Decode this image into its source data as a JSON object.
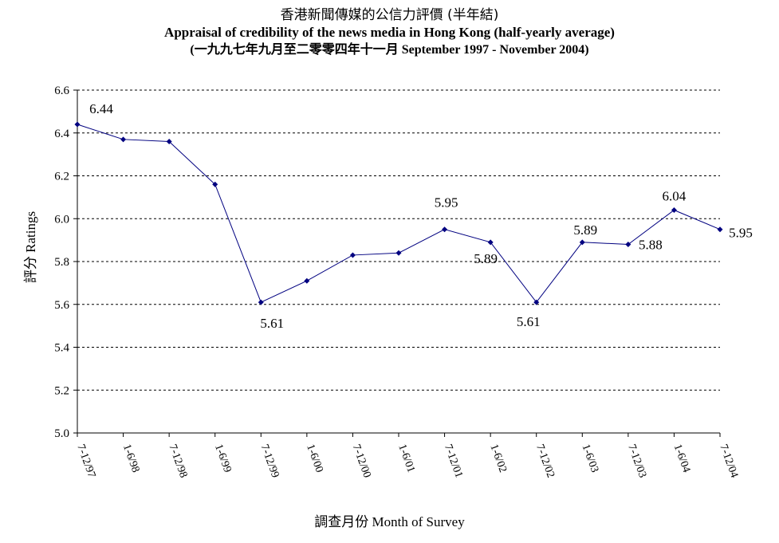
{
  "chart_data": {
    "type": "line",
    "title": "香港新聞傳媒的公信力評價 (半年結)",
    "subtitle": "Appraisal of credibility of the news media in Hong Kong (half-yearly average)",
    "subtitle2": "(一九九七年九月至二零零四年十一月 September 1997 - November 2004)",
    "xlabel": "調查月份 Month of Survey",
    "ylabel": "評分 Ratings",
    "ylim": [
      5.0,
      6.6
    ],
    "yticks": [
      "5.0",
      "5.2",
      "5.4",
      "5.6",
      "5.8",
      "6.0",
      "6.2",
      "6.4",
      "6.6"
    ],
    "grid": "horizontal dashed",
    "legend": "none",
    "line_color": "#000080",
    "categories": [
      "7-12/97",
      "1-6/98",
      "7-12/98",
      "1-6/99",
      "7-12/99",
      "1-6/00",
      "7-12/00",
      "1-6/01",
      "7-12/01",
      "1-6/02",
      "7-12/02",
      "1-6/03",
      "7-12/03",
      "1-6/04",
      "7-12/04"
    ],
    "values": [
      6.44,
      6.37,
      6.36,
      6.16,
      5.61,
      5.71,
      5.83,
      5.84,
      5.95,
      5.89,
      5.61,
      5.89,
      5.88,
      6.04,
      5.95
    ],
    "data_labels": [
      {
        "index": 0,
        "text": "6.44"
      },
      {
        "index": 4,
        "text": "5.61"
      },
      {
        "index": 8,
        "text": "5.95"
      },
      {
        "index": 9,
        "text": "5.89"
      },
      {
        "index": 10,
        "text": "5.61"
      },
      {
        "index": 11,
        "text": "5.89"
      },
      {
        "index": 12,
        "text": "5.88"
      },
      {
        "index": 13,
        "text": "6.04"
      },
      {
        "index": 14,
        "text": "5.95"
      }
    ]
  }
}
